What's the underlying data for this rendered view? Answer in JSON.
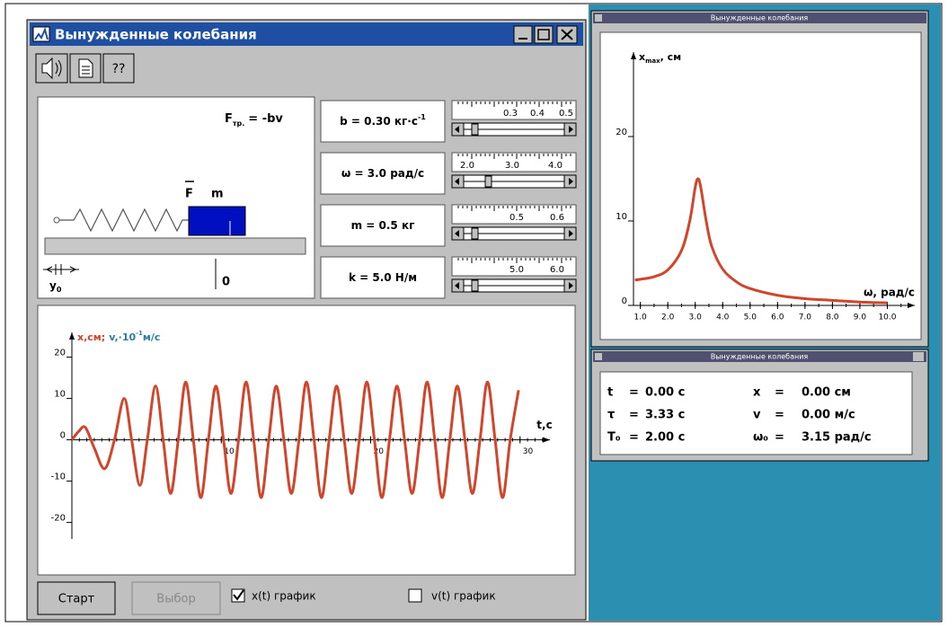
{
  "window": {
    "title": "Вынужденные колебания",
    "help": "??"
  },
  "mechanics": {
    "friction": "F",
    "friction_sub": "тр.",
    "friction_eq": "= -bv",
    "force": "F",
    "mass": "m",
    "y0": "y",
    "y0_sub": "0",
    "origin": "0"
  },
  "parameters": [
    {
      "label": "b = 0.30 кг·с",
      "sup": "-1",
      "scale": [
        "0.3",
        "0.4",
        "0.5"
      ]
    },
    {
      "label": "ω = 3.0 рад/с",
      "scale": [
        "2.0",
        "3.0",
        "4.0"
      ]
    },
    {
      "label": "m = 0.5 кг",
      "scale": [
        "0.5",
        "0.6"
      ]
    },
    {
      "label": "k = 5.0 Н/м",
      "scale": [
        "5.0",
        "6.0"
      ]
    }
  ],
  "controls": {
    "start": "Старт",
    "select": "Выбор",
    "x_check": "x(t) график",
    "v_check": "v(t) график",
    "x_checked": true,
    "v_checked": false
  },
  "chart_data": [
    {
      "type": "line",
      "window_title": "Вынужденные колебания",
      "y_label": "x",
      "y_label_sub": "max",
      "y_label_unit": ", см",
      "x_label": "ω, рад/с",
      "x": [
        0.8,
        1.0,
        1.5,
        2.0,
        2.5,
        2.8,
        3.0,
        3.1,
        3.2,
        3.4,
        3.6,
        4.0,
        4.5,
        5.0,
        6.0,
        7.0,
        8.0,
        9.0,
        10.0
      ],
      "series": [
        {
          "color": "#d2452a",
          "values": [
            3.0,
            3.1,
            3.4,
            4.2,
            6.5,
            10,
            14,
            15,
            14,
            10,
            7,
            4.3,
            2.8,
            2,
            1.2,
            0.8,
            0.6,
            0.4,
            0.3
          ]
        }
      ],
      "xlim": [
        0.75,
        11
      ],
      "ylim": [
        0,
        30
      ],
      "xticks": [
        {
          "value": 1,
          "label": "1.0"
        },
        {
          "value": 2,
          "label": "2.0"
        },
        {
          "value": 3,
          "label": "3.0"
        },
        {
          "value": 4,
          "label": "4.0"
        },
        {
          "value": 5,
          "label": "5.0"
        },
        {
          "value": 6,
          "label": "6.0"
        },
        {
          "value": 7,
          "label": "7.0"
        },
        {
          "value": 8,
          "label": "8.0"
        },
        {
          "value": 9,
          "label": "9.0"
        },
        {
          "value": 10,
          "label": "10.0"
        }
      ],
      "yticks": [
        0,
        10,
        20
      ]
    },
    {
      "type": "line",
      "y_label": "x,см;",
      "y2_label": "v,·10",
      "y2_label_sup": "-1",
      "y2_label_unit": "м/с",
      "x_label": "t,с",
      "x": [
        0,
        0.45,
        0.9,
        1.5,
        2.2,
        2.85,
        3.5,
        4.0,
        4.55,
        5.05,
        5.6,
        6.11,
        6.61,
        7.12,
        7.62,
        8.13,
        8.63,
        9.14,
        9.64,
        10.15,
        10.65,
        11.16,
        11.66,
        12.17,
        12.67,
        13.18,
        13.68,
        14.19,
        14.69,
        15.2,
        15.7,
        16.21,
        16.71,
        17.22,
        17.72,
        18.23,
        18.73,
        19.24,
        19.74,
        20.25,
        20.75,
        21.26,
        21.76,
        22.27,
        22.77,
        23.28,
        23.78,
        24.29,
        24.79,
        25.3,
        25.8,
        26.31,
        26.81,
        27.32,
        27.82,
        28.33,
        28.83,
        29.34,
        29.9
      ],
      "series": [
        {
          "color": "#d2452a",
          "values": [
            0,
            2,
            3,
            -2,
            -7,
            0,
            10,
            0,
            -11,
            0,
            13,
            0,
            -13,
            0,
            14,
            0,
            -14,
            0,
            13,
            0,
            -13,
            0,
            14,
            0,
            -14,
            0,
            13,
            0,
            -13,
            0,
            14,
            0,
            -14,
            0,
            13,
            0,
            -13,
            0,
            14,
            0,
            -14,
            0,
            13,
            0,
            -13,
            0,
            14,
            0,
            -14,
            0,
            13,
            0,
            -13,
            0,
            14,
            0,
            -14,
            0,
            12
          ]
        }
      ],
      "xlim": [
        0,
        32
      ],
      "ylim": [
        -24,
        26
      ],
      "xticks": [
        10,
        20,
        30
      ],
      "yticks": [
        -20,
        -10,
        0,
        10,
        20
      ]
    }
  ],
  "info": {
    "title": "Вынужденные колебания",
    "rows": [
      [
        "t",
        "=",
        "0.00 с",
        "x",
        "=",
        "0.00 см"
      ],
      [
        "τ",
        "=",
        "3.33 с",
        "v",
        "=",
        "0.00 м/с"
      ],
      [
        "T₀",
        "=",
        "2.00 с",
        "ω₀",
        "=",
        "3.15 рад/с"
      ]
    ]
  }
}
